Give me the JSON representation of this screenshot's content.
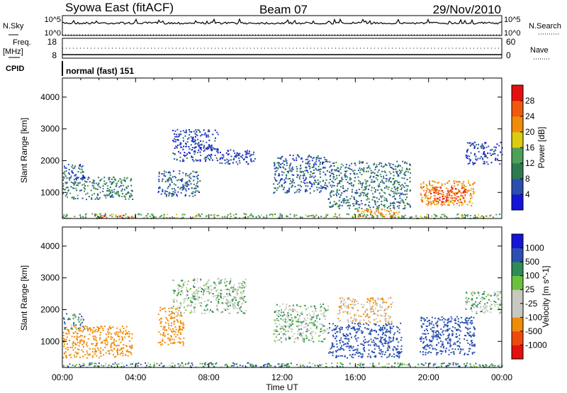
{
  "header": {
    "station": "Syowa East (fitACF)",
    "beam": "Beam 07",
    "date": "29/Nov/2010"
  },
  "top_panels": {
    "nsky_label": "N.Sky",
    "nsky_ticks": [
      "10^5",
      "10^0"
    ],
    "nsearch_label": "N.Search",
    "nsearch_ticks": [
      "10^5",
      "10^0"
    ],
    "freq_label_1": "Freq.",
    "freq_label_2": "[MHz]",
    "freq_ticks": [
      "18",
      "8"
    ],
    "nave_label": "Nave",
    "nave_ticks": [
      "60",
      "0"
    ],
    "cpid_label": "CPID",
    "cpid_value": "normal (fast) 151"
  },
  "x_axis": {
    "label": "Time UT",
    "ticks": [
      "00:00",
      "04:00",
      "08:00",
      "12:00",
      "16:00",
      "20:00",
      "00:00"
    ],
    "tick_hours": [
      0,
      4,
      8,
      12,
      16,
      20,
      24
    ]
  },
  "colors": {
    "power": [
      "#1515d8",
      "#2a4fb0",
      "#2f7a4f",
      "#4da05a",
      "#dccc10",
      "#f08c0c",
      "#f05a10",
      "#e41010"
    ],
    "velocity": [
      "#e41010",
      "#ee4a10",
      "#f08c0c",
      "#c8c8c0",
      "#c8c8c0",
      "#6cc040",
      "#2f8a55",
      "#2a4fb0",
      "#1515d8"
    ]
  },
  "chart_data": [
    {
      "type": "heatmap",
      "title": "",
      "xlabel": "Time UT",
      "ylabel": "Slant Range [km]",
      "xlim": [
        0,
        24
      ],
      "ylim": [
        180,
        4600
      ],
      "y_ticks": [
        1000,
        2000,
        3000,
        4000
      ],
      "y_tick_labels": [
        "1000",
        "2000",
        "3000",
        "4000"
      ],
      "colorbar_label": "Power [dB]",
      "colorbar_ticks": [
        "28",
        "24",
        "20",
        "16",
        "12",
        "8",
        "4"
      ],
      "colorbar_range": [
        0,
        32
      ],
      "regions": [
        {
          "t": [
            0.0,
            3.8
          ],
          "r": [
            800,
            1500
          ],
          "v": 10
        },
        {
          "t": [
            0.0,
            1.2
          ],
          "r": [
            1400,
            1900
          ],
          "v": 6
        },
        {
          "t": [
            0.0,
            24.0
          ],
          "r": [
            200,
            350
          ],
          "v": 14
        },
        {
          "t": [
            1.5,
            3.8
          ],
          "r": [
            200,
            300
          ],
          "v": 26
        },
        {
          "t": [
            5.2,
            7.5
          ],
          "r": [
            900,
            1700
          ],
          "v": 7
        },
        {
          "t": [
            6.0,
            8.5
          ],
          "r": [
            2000,
            3000
          ],
          "v": 5
        },
        {
          "t": [
            8.5,
            10.5
          ],
          "r": [
            1900,
            2400
          ],
          "v": 5
        },
        {
          "t": [
            11.5,
            14.5
          ],
          "r": [
            1000,
            2200
          ],
          "v": 7
        },
        {
          "t": [
            14.5,
            19.0
          ],
          "r": [
            500,
            2000
          ],
          "v": 9
        },
        {
          "t": [
            16.0,
            18.5
          ],
          "r": [
            250,
            500
          ],
          "v": 22
        },
        {
          "t": [
            19.5,
            22.5
          ],
          "r": [
            600,
            1400
          ],
          "v": 22
        },
        {
          "t": [
            20.0,
            22.0
          ],
          "r": [
            700,
            1200
          ],
          "v": 28
        },
        {
          "t": [
            22.0,
            24.0
          ],
          "r": [
            1900,
            2600
          ],
          "v": 5
        }
      ]
    },
    {
      "type": "heatmap",
      "title": "",
      "xlabel": "Time UT",
      "ylabel": "Slant Range [km]",
      "xlim": [
        0,
        24
      ],
      "ylim": [
        180,
        4600
      ],
      "y_ticks": [
        1000,
        2000,
        3000,
        4000
      ],
      "y_tick_labels": [
        "1000",
        "2000",
        "3000",
        "4000"
      ],
      "colorbar_label": "Velocity [m s^-1]",
      "colorbar_ticks": [
        "1000",
        "500",
        "100",
        "25",
        "-25",
        "-100",
        "-500",
        "-1000"
      ],
      "colorbar_values": [
        1000,
        500,
        100,
        25,
        -25,
        -100,
        -500,
        -1000
      ],
      "regions": [
        {
          "t": [
            0.0,
            3.8
          ],
          "r": [
            500,
            1500
          ],
          "v": -300
        },
        {
          "t": [
            0.0,
            1.2
          ],
          "r": [
            1400,
            1900
          ],
          "v": 50
        },
        {
          "t": [
            0.0,
            24.0
          ],
          "r": [
            200,
            350
          ],
          "v": 60
        },
        {
          "t": [
            5.2,
            6.6
          ],
          "r": [
            900,
            2100
          ],
          "v": -250
        },
        {
          "t": [
            6.0,
            10.0
          ],
          "r": [
            1900,
            3000
          ],
          "v": 0
        },
        {
          "t": [
            11.5,
            14.5
          ],
          "r": [
            1000,
            2200
          ],
          "v": 0
        },
        {
          "t": [
            14.5,
            18.5
          ],
          "r": [
            500,
            1600
          ],
          "v": 200
        },
        {
          "t": [
            15.0,
            18.0
          ],
          "r": [
            1600,
            2400
          ],
          "v": -80
        },
        {
          "t": [
            19.5,
            22.5
          ],
          "r": [
            600,
            1800
          ],
          "v": 250
        },
        {
          "t": [
            22.0,
            24.0
          ],
          "r": [
            1900,
            2600
          ],
          "v": 0
        }
      ]
    }
  ]
}
